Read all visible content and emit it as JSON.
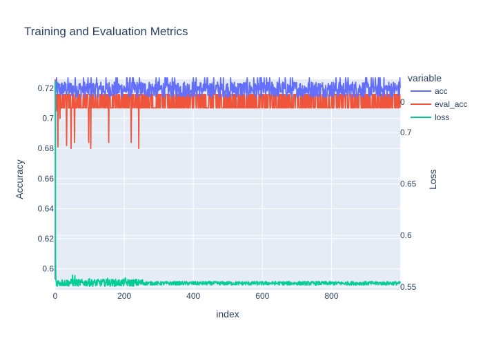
{
  "chart_data": {
    "type": "line",
    "title": "Training and Evaluation Metrics",
    "xlabel": "index",
    "ylabel": "Accuracy",
    "y2label": "Loss",
    "xlim": [
      0,
      999
    ],
    "ylim": [
      0.586,
      0.726
    ],
    "y2lim": [
      0.5472,
      0.7516
    ],
    "x_ticks": [
      0,
      200,
      400,
      600,
      800
    ],
    "x_tick_labels": [
      "0",
      "200",
      "400",
      "600",
      "800"
    ],
    "y_ticks": [
      0.6,
      0.62,
      0.64,
      0.66,
      0.68,
      0.7,
      0.72
    ],
    "y_tick_labels": [
      "0.6",
      "0.62",
      "0.64",
      "0.66",
      "0.68",
      "0.7",
      "0.72"
    ],
    "y2_ticks": [
      0.55,
      0.6,
      0.65,
      0.7
    ],
    "y2_tick_labels": [
      "0.55",
      "0.6",
      "0.65",
      "0.7"
    ],
    "y2_partial_tick_label": "0",
    "legend": {
      "title": "variable",
      "placement": "right",
      "entries": [
        {
          "name": "acc",
          "color": "#636efa"
        },
        {
          "name": "eval_acc",
          "color": "#ef553b"
        },
        {
          "name": "loss",
          "color": "#00cc96"
        }
      ]
    },
    "series": [
      {
        "name": "acc",
        "axis": "left",
        "color": "#636efa",
        "description_values": {
          "x_range": [
            0,
            999
          ],
          "start_value": 0.593,
          "typical_range": [
            0.714,
            0.725
          ],
          "median": 0.718
        }
      },
      {
        "name": "eval_acc",
        "axis": "left",
        "color": "#ef553b",
        "levels": [
          0.707,
          0.716
        ],
        "start_value": 0.726,
        "dips": [
          {
            "x": 3,
            "y": 0.705
          },
          {
            "x": 8,
            "y": 0.681
          },
          {
            "x": 14,
            "y": 0.7
          },
          {
            "x": 33,
            "y": 0.682
          },
          {
            "x": 46,
            "y": 0.68
          },
          {
            "x": 56,
            "y": 0.684
          },
          {
            "x": 97,
            "y": 0.684
          },
          {
            "x": 103,
            "y": 0.68
          },
          {
            "x": 155,
            "y": 0.684
          },
          {
            "x": 220,
            "y": 0.684
          },
          {
            "x": 242,
            "y": 0.68
          }
        ]
      },
      {
        "name": "loss",
        "axis": "right",
        "color": "#00cc96",
        "start_value": 0.75,
        "plateau_value": 0.553,
        "peaks": [
          {
            "x": 50,
            "y": 0.5615
          },
          {
            "x": 57,
            "y": 0.561
          },
          {
            "x": 100,
            "y": 0.558
          },
          {
            "x": 152,
            "y": 0.5585
          },
          {
            "x": 203,
            "y": 0.559
          }
        ]
      }
    ]
  }
}
